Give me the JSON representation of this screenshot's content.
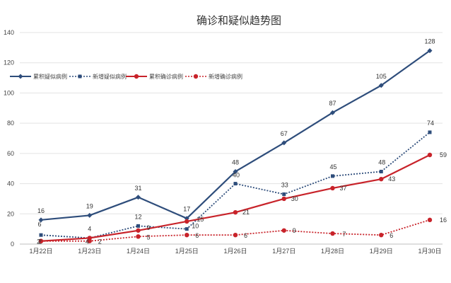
{
  "chart_data": {
    "type": "line",
    "title": "确诊和疑似趋势图",
    "categories": [
      "1月22日",
      "1月23日",
      "1月24日",
      "1月25日",
      "1月26日",
      "1月27日",
      "1月28日",
      "1月29日",
      "1月30日"
    ],
    "ylim": [
      0,
      140
    ],
    "yticks": [
      0,
      20,
      40,
      60,
      80,
      100,
      120,
      140
    ],
    "grid": true,
    "legend_position": "top-left",
    "series": [
      {
        "name": "累积疑似病例",
        "values": [
          16,
          19,
          31,
          17,
          48,
          67,
          87,
          105,
          128
        ],
        "color": "#2e4d7b",
        "line_style": "solid",
        "marker": "diamond"
      },
      {
        "name": "新增疑似病例",
        "values": [
          6,
          4,
          12,
          10,
          40,
          33,
          45,
          48,
          74
        ],
        "color": "#2e4d7b",
        "line_style": "dotted",
        "marker": "square"
      },
      {
        "name": "累积确诊病例",
        "values": [
          2,
          4,
          9,
          15,
          21,
          30,
          37,
          43,
          59
        ],
        "color": "#c8232a",
        "line_style": "solid",
        "marker": "circle"
      },
      {
        "name": "新增确诊病例",
        "values": [
          2,
          2,
          5,
          6,
          6,
          9,
          7,
          6,
          16
        ],
        "color": "#c8232a",
        "line_style": "dotted",
        "marker": "circle"
      }
    ]
  }
}
